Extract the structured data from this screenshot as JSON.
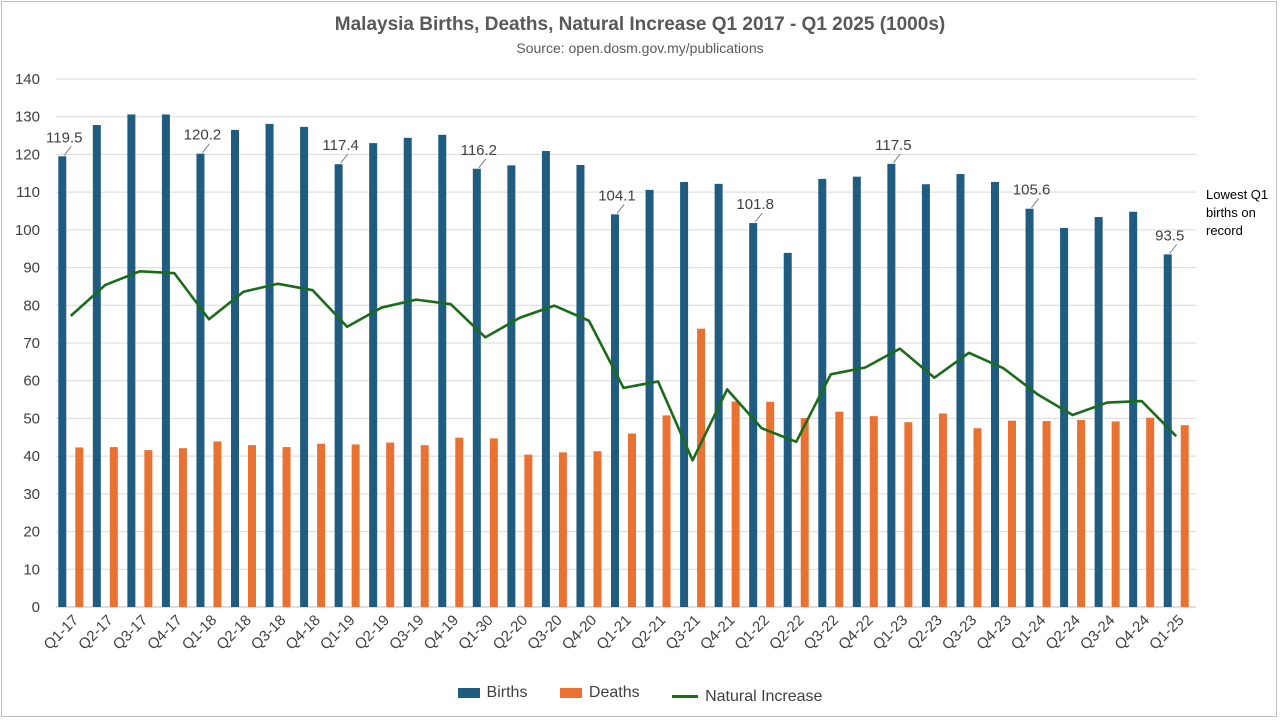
{
  "chart_data": {
    "type": "bar",
    "title": "Malaysia Births, Deaths, Natural Increase Q1 2017 - Q1 2025 (1000s)",
    "subtitle": "Source: open.dosm.gov.my/publications",
    "categories": [
      "Q1-17",
      "Q2-17",
      "Q3-17",
      "Q4-17",
      "Q1-18",
      "Q2-18",
      "Q3-18",
      "Q4-18",
      "Q1-19",
      "Q2-19",
      "Q3-19",
      "Q4-19",
      "Q1-30",
      "Q2-20",
      "Q3-20",
      "Q4-20",
      "Q1-21",
      "Q2-21",
      "Q3-21",
      "Q4-21",
      "Q1-22",
      "Q2-22",
      "Q3-22",
      "Q4-22",
      "Q1-23",
      "Q2-23",
      "Q3-23",
      "Q4-23",
      "Q1-24",
      "Q2-24",
      "Q3-24",
      "Q4-24",
      "Q1-25"
    ],
    "series": [
      {
        "name": "Births",
        "type": "bar",
        "color": "#1f5c7f",
        "values": [
          119.5,
          127.8,
          130.6,
          130.6,
          120.2,
          126.5,
          128.1,
          127.3,
          117.4,
          123.0,
          124.4,
          125.2,
          116.2,
          117.1,
          120.9,
          117.2,
          104.1,
          110.6,
          112.7,
          112.2,
          101.8,
          93.9,
          113.5,
          114.1,
          117.5,
          112.1,
          114.8,
          112.7,
          105.6,
          100.5,
          103.4,
          104.8,
          93.5
        ]
      },
      {
        "name": "Deaths",
        "type": "bar",
        "color": "#e97132",
        "values": [
          42.3,
          42.4,
          41.6,
          42.1,
          43.9,
          42.9,
          42.4,
          43.3,
          43.1,
          43.6,
          42.9,
          44.9,
          44.7,
          40.4,
          41.0,
          41.3,
          46.0,
          50.8,
          73.8,
          54.5,
          54.4,
          50.1,
          51.8,
          50.6,
          49.0,
          51.3,
          47.4,
          49.4,
          49.3,
          49.6,
          49.2,
          50.2,
          48.2
        ]
      },
      {
        "name": "Natural Increase",
        "type": "line",
        "color": "#1b6b1b",
        "values": [
          77.2,
          85.4,
          89.0,
          88.5,
          76.3,
          83.6,
          85.7,
          84.0,
          74.3,
          79.4,
          81.5,
          80.3,
          71.5,
          76.7,
          79.9,
          75.9,
          58.1,
          59.8,
          38.9,
          57.7,
          47.4,
          43.8,
          61.7,
          63.5,
          68.5,
          60.8,
          67.4,
          63.3,
          56.3,
          50.9,
          54.2,
          54.6,
          45.3
        ]
      }
    ],
    "ylim": [
      0,
      140
    ],
    "yticks": [
      0,
      10,
      20,
      30,
      40,
      50,
      60,
      70,
      80,
      90,
      100,
      110,
      120,
      130,
      140
    ],
    "grid": true,
    "legend": "bottom",
    "annotations": [
      {
        "index": 0,
        "text": "119.5"
      },
      {
        "index": 4,
        "text": "120.2"
      },
      {
        "index": 8,
        "text": "117.4"
      },
      {
        "index": 12,
        "text": "116.2"
      },
      {
        "index": 16,
        "text": "104.1"
      },
      {
        "index": 20,
        "text": "101.8"
      },
      {
        "index": 24,
        "text": "117.5"
      },
      {
        "index": 28,
        "text": "105.6"
      },
      {
        "index": 32,
        "text": "93.5"
      }
    ],
    "note": "Lowest Q1 births on record"
  }
}
